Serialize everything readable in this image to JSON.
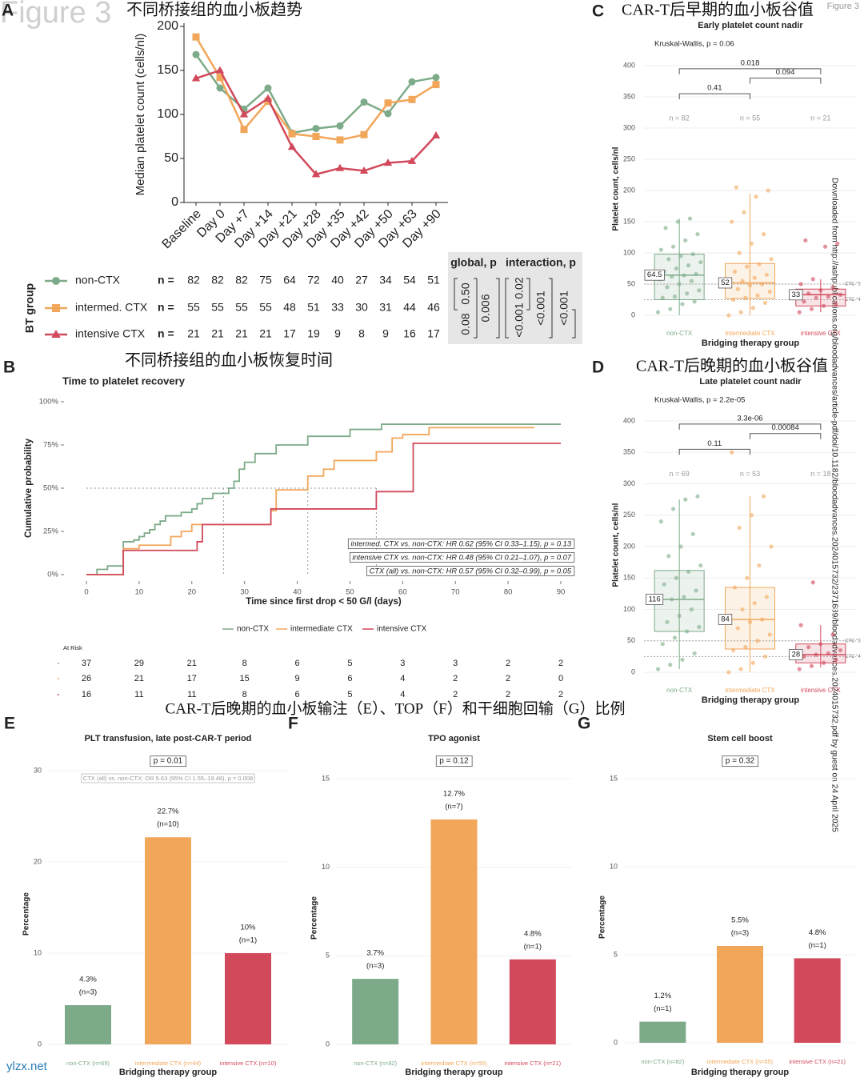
{
  "page": {
    "figure_watermark": "Figure 3",
    "figure_label": "Figure 3",
    "section_heading": "CAR-T后晚期的血小板输注（E）、TOP（F）和干细胞回输（G）比例",
    "download_note": "Downloaded from http://ashpublications.org/bloodadvances/article-pdf/doi/10.1182/bloodadvances.2024015732/2371689/bloodadvances.2024015732.pdf by guest on 24 April 2025",
    "site": "ylzx.net"
  },
  "chart_data": [
    {
      "type": "line",
      "label": "A",
      "title": "不同桥接组的血小板趋势",
      "ylabel": "Median platelet count (cells/nl)",
      "categories": [
        "Baseline",
        "Day 0",
        "Day +7",
        "Day +14",
        "Day +21",
        "Day +28",
        "Day +35",
        "Day +42",
        "Day +50",
        "Day +63",
        "Day +90"
      ],
      "ylim": [
        0,
        200
      ],
      "yticks": [
        0,
        50,
        100,
        150,
        200
      ],
      "table_title": "BT group",
      "n_label": "n =",
      "series": [
        {
          "name": "non-CTX",
          "color": "#7dab89",
          "marker": "circle",
          "values": [
            168,
            130,
            106,
            130,
            79,
            84,
            87,
            114,
            101,
            137,
            142
          ],
          "n": [
            82,
            82,
            82,
            75,
            64,
            72,
            40,
            27,
            34,
            54,
            51
          ]
        },
        {
          "name": "intermed. CTX",
          "color": "#f2a65a",
          "marker": "square",
          "values": [
            188,
            142,
            83,
            115,
            78,
            75,
            71,
            77,
            113,
            117,
            134
          ],
          "n": [
            55,
            55,
            55,
            55,
            48,
            51,
            33,
            30,
            31,
            44,
            46
          ]
        },
        {
          "name": "intensive CTX",
          "color": "#d1495b",
          "marker": "triangle",
          "values": [
            141,
            150,
            100,
            118,
            63,
            32,
            39,
            36,
            45,
            47,
            76
          ],
          "n": [
            21,
            21,
            21,
            21,
            17,
            19,
            9,
            8,
            9,
            16,
            17
          ]
        }
      ],
      "global_p_title": "global, p",
      "interaction_p_title": "interaction, p",
      "global_p": [
        "0.08",
        "0.50",
        "0.006"
      ],
      "interaction_p": [
        "<0.001",
        "0.02",
        "<0.001",
        "<0.001"
      ]
    },
    {
      "type": "survival",
      "label": "B",
      "heading": "不同桥接组的血小板恢复时间",
      "title": "Time to platelet recovery",
      "xlabel": "Time since first drop < 50 G/l (days)",
      "ylabel": "Cumulative probability",
      "xlim": [
        0,
        90
      ],
      "xticks": [
        0,
        10,
        20,
        30,
        40,
        50,
        60,
        70,
        80,
        90
      ],
      "ylim": [
        0,
        100
      ],
      "yticks": [
        {
          "value": 0,
          "label": "0%"
        },
        {
          "value": 25,
          "label": "25%"
        },
        {
          "value": 50,
          "label": "50%"
        },
        {
          "value": 75,
          "label": "75%"
        },
        {
          "value": 100,
          "label": "100%"
        }
      ],
      "series": [
        {
          "name": "non-CTX",
          "color": "#7dab89",
          "x": [
            0,
            2,
            4,
            7,
            9,
            10,
            11,
            12,
            13,
            14,
            15,
            18,
            20,
            21,
            22,
            24,
            27,
            28,
            29,
            30,
            32,
            36,
            42,
            50,
            56,
            90
          ],
          "values": [
            0,
            3,
            5,
            19,
            20,
            22,
            24,
            26,
            29,
            31,
            34,
            36,
            38,
            41,
            44,
            47,
            50,
            54,
            61,
            65,
            70,
            75,
            80,
            84,
            87,
            87
          ]
        },
        {
          "name": "intermediate CTX",
          "color": "#f2a65a",
          "x": [
            0,
            7,
            10,
            16,
            18,
            20,
            27,
            35,
            36,
            40,
            42,
            45,
            47,
            54,
            55,
            58,
            60,
            65,
            85
          ],
          "values": [
            0,
            15,
            17,
            22,
            25,
            29,
            29,
            37,
            49,
            49,
            57,
            61,
            66,
            66,
            71,
            79,
            81,
            85,
            85
          ]
        },
        {
          "name": "intensive CTX",
          "color": "#d1495b",
          "x": [
            0,
            7,
            21,
            22,
            35,
            55,
            62,
            90
          ],
          "values": [
            0,
            14,
            19,
            29,
            38,
            48,
            76,
            76
          ]
        }
      ],
      "median_line": 50,
      "median_times": [
        26,
        42,
        55
      ],
      "annotations": [
        "intermed. CTX vs. non-CTX: HR 0.62 (95% CI 0.33–1.15), p = 0.13",
        "intensive CTX vs. non-CTX: HR 0.48 (95% CI 0.21–1.07), p = 0.07",
        "CTX (all) vs. non-CTX: HR 0.57 (95% CI 0.32–0.99), p = 0.05"
      ],
      "risk_title": "At Risk",
      "risk_table": [
        [
          37,
          29,
          21,
          8,
          6,
          5,
          3,
          3,
          2,
          2
        ],
        [
          26,
          21,
          17,
          15,
          9,
          6,
          4,
          2,
          2,
          0
        ],
        [
          16,
          11,
          11,
          8,
          6,
          5,
          4,
          2,
          2,
          2
        ]
      ]
    },
    {
      "type": "box",
      "label": "C",
      "heading": "CAR-T后早期的血小板谷值",
      "title": "Early platelet count nadir",
      "test": "Kruskal-Wallis, p = 0.06",
      "xlabel": "Bridging therapy group",
      "ylabel": "Platelet count, cells/nl",
      "ylim": [
        -15,
        420
      ],
      "yticks": [
        0,
        50,
        100,
        150,
        200,
        250,
        300,
        350,
        400
      ],
      "grid": true,
      "reference_lines": [
        {
          "value": 50,
          "label": "CTC °3"
        },
        {
          "value": 25,
          "label": "CTC °4"
        }
      ],
      "comparison_labels": [
        "0.41",
        "0.018",
        "0.094"
      ],
      "series": [
        {
          "name": "non-CTX",
          "color": "#7dab89",
          "n_label": "n = 82",
          "whisker_low": 0,
          "q1": 25,
          "median": 64.5,
          "q3": 98,
          "whisker_high": 155,
          "points": [
            5,
            10,
            18,
            22,
            28,
            30,
            35,
            40,
            45,
            50,
            55,
            58,
            62,
            64,
            66,
            70,
            75,
            80,
            85,
            90,
            95,
            98,
            105,
            110,
            120,
            130,
            140,
            150,
            155
          ]
        },
        {
          "name": "intermediate CTX",
          "color": "#f2a65a",
          "n_label": "n = 55",
          "whisker_low": 0,
          "q1": 27,
          "median": 52,
          "q3": 83,
          "whisker_high": 195,
          "points": [
            0,
            5,
            12,
            20,
            25,
            28,
            32,
            38,
            42,
            48,
            50,
            52,
            55,
            60,
            65,
            70,
            78,
            82,
            90,
            100,
            115,
            130,
            150,
            165,
            190,
            200,
            205
          ]
        },
        {
          "name": "intensive CTX",
          "color": "#d1495b",
          "n_label": "n = 21",
          "whisker_low": 5,
          "q1": 15,
          "median": 33,
          "q3": 42,
          "whisker_high": 58,
          "points": [
            5,
            10,
            15,
            18,
            22,
            28,
            30,
            33,
            35,
            40,
            45,
            50,
            58,
            110,
            115,
            120
          ]
        }
      ]
    },
    {
      "type": "box",
      "label": "D",
      "heading": "CAR-T后晚期的血小板谷值",
      "title": "Late platelet count nadir",
      "test": "Kruskal-Wallis, p = 2.2e-05",
      "xlabel": "Bridging therapy group",
      "ylabel": "Platelet count, cells/nl",
      "ylim": [
        -15,
        420
      ],
      "yticks": [
        0,
        50,
        100,
        150,
        200,
        250,
        300,
        350,
        400
      ],
      "grid": true,
      "reference_lines": [
        {
          "value": 50,
          "label": "CTC °3"
        },
        {
          "value": 25,
          "label": "CTC °4"
        }
      ],
      "comparison_labels": [
        "0.11",
        "3.3e-06",
        "0.00084"
      ],
      "series": [
        {
          "name": "non-CTX",
          "color": "#7dab89",
          "n_label": "n = 69",
          "whisker_low": 5,
          "q1": 65,
          "median": 116,
          "q3": 162,
          "whisker_high": 275,
          "points": [
            5,
            12,
            20,
            30,
            45,
            55,
            65,
            72,
            80,
            90,
            100,
            110,
            116,
            120,
            130,
            140,
            150,
            160,
            170,
            185,
            200,
            220,
            240,
            260,
            275,
            280
          ]
        },
        {
          "name": "intermediate CTX",
          "color": "#f2a65a",
          "n_label": "n = 53",
          "whisker_low": 0,
          "q1": 37,
          "median": 84,
          "q3": 135,
          "whisker_high": 280,
          "points": [
            0,
            5,
            15,
            25,
            35,
            40,
            50,
            60,
            70,
            80,
            84,
            90,
            100,
            110,
            120,
            135,
            150,
            170,
            200,
            230,
            250,
            280,
            350
          ]
        },
        {
          "name": "intensive CTX",
          "color": "#d1495b",
          "n_label": "n = 18",
          "whisker_low": 8,
          "q1": 15,
          "median": 28,
          "q3": 45,
          "whisker_high": 75,
          "points": [
            5,
            10,
            15,
            20,
            25,
            28,
            30,
            35,
            40,
            45,
            60,
            75,
            143
          ]
        }
      ]
    },
    {
      "type": "bar",
      "label": "E",
      "title": "PLT transfusion, late post-CAR-T period",
      "p": "p =  0.01",
      "annotation": "CTX (all) vs. non-CTX: OR 5.63 (95% CI 1.55–19.48), p = 0.008",
      "xlabel": "Bridging therapy group",
      "ylabel": "Percentage",
      "categories": [
        "non-CTX (n=69)",
        "intermediate CTX (n=44)",
        "intensive CTX (n=10)"
      ],
      "colors": [
        "#7dab89",
        "#f2a65a",
        "#d1495b"
      ],
      "values": [
        4.3,
        22.7,
        10
      ],
      "value_labels": [
        "4.3%",
        "22.7%",
        "10%"
      ],
      "n_labels": [
        "(n=3)",
        "(n=10)",
        "(n=1)"
      ],
      "ylim": [
        0,
        30
      ],
      "yticks": [
        0,
        10,
        20,
        30
      ],
      "grid": true
    },
    {
      "type": "bar",
      "label": "F",
      "title": "TPO agonist",
      "p": "p =  0.12",
      "xlabel": "Bridging therapy group",
      "ylabel": "Percentage",
      "categories": [
        "non-CTX (n=82)",
        "intermediate CTX (n=55)",
        "intensive CTX (n=21)"
      ],
      "colors": [
        "#7dab89",
        "#f2a65a",
        "#d1495b"
      ],
      "values": [
        3.7,
        12.7,
        4.8
      ],
      "value_labels": [
        "3.7%",
        "12.7%",
        "4.8%"
      ],
      "n_labels": [
        "(n=3)",
        "(n=7)",
        "(n=1)"
      ],
      "ylim": [
        0,
        15
      ],
      "yticks": [
        0,
        5,
        10,
        15
      ],
      "grid": true
    },
    {
      "type": "bar",
      "label": "G",
      "title": "Stem cell boost",
      "p": "p =  0.32",
      "xlabel": "Bridging therapy group",
      "ylabel": "Percentage",
      "categories": [
        "non-CTX (n=82)",
        "intermediate CTX (n=55)",
        "intensive CTX (n=21)"
      ],
      "colors": [
        "#7dab89",
        "#f2a65a",
        "#d1495b"
      ],
      "values": [
        1.2,
        5.5,
        4.8
      ],
      "value_labels": [
        "1.2%",
        "5.5%",
        "4.8%"
      ],
      "n_labels": [
        "(n=1)",
        "(n=3)",
        "(n=1)"
      ],
      "ylim": [
        0,
        15
      ],
      "yticks": [
        0,
        5,
        10,
        15
      ],
      "grid": true
    }
  ]
}
